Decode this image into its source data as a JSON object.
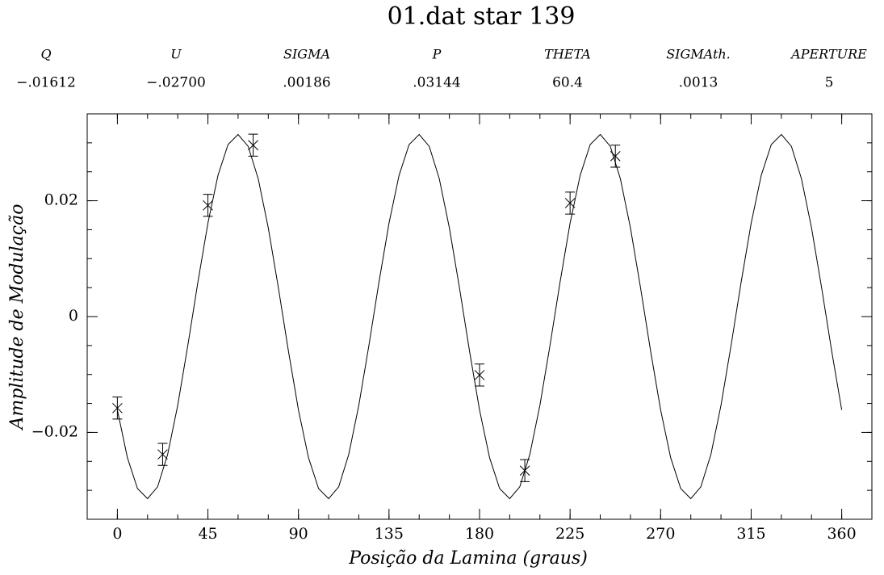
{
  "chart_data": {
    "type": "line",
    "title": "01.dat star 139",
    "header": {
      "labels": [
        "Q",
        "U",
        "SIGMA",
        "P",
        "THETA",
        "SIGMAth.",
        "APERTURE"
      ],
      "values": [
        "−.01612",
        "−.02700",
        ".00186",
        ".03144",
        "60.4",
        ".0013",
        "5"
      ]
    },
    "xlabel": "Posição da Lamina (graus)",
    "ylabel": "Amplitude de Modulação",
    "xlim": [
      -15,
      375
    ],
    "ylim": [
      -0.035,
      0.035
    ],
    "xticks": [
      0,
      45,
      90,
      135,
      180,
      225,
      270,
      315,
      360
    ],
    "yticks": [
      {
        "value": -0.02,
        "label": "−0.02"
      },
      0,
      0.02
    ],
    "minor_ticks": {
      "x": 15,
      "y": 0.005
    },
    "color": "#000000",
    "fit": {
      "x": [
        0,
        5,
        10,
        15,
        20,
        25,
        30,
        35,
        40,
        45,
        50,
        55,
        60,
        65,
        70,
        75,
        80,
        85,
        90,
        95,
        100,
        105,
        110,
        115,
        120,
        125,
        130,
        135,
        140,
        145,
        150,
        155,
        160,
        165,
        170,
        175,
        180,
        185,
        190,
        195,
        200,
        205,
        210,
        215,
        220,
        225,
        230,
        235,
        240,
        245,
        250,
        255,
        260,
        265,
        270,
        275,
        280,
        285,
        290,
        295,
        300,
        305,
        310,
        315,
        320,
        325,
        330,
        335,
        340,
        345,
        350,
        355,
        360
      ],
      "values": [
        -0.01612,
        -0.02438,
        -0.0297,
        -0.03144,
        -0.02939,
        -0.02379,
        -0.01532,
        -0.00501,
        0.00591,
        0.01612,
        0.02438,
        0.0297,
        0.03144,
        0.02939,
        0.02379,
        0.01532,
        0.00501,
        -0.00591,
        -0.01612,
        -0.02438,
        -0.0297,
        -0.03144,
        -0.02939,
        -0.02379,
        -0.01532,
        -0.00501,
        0.00591,
        0.01612,
        0.02438,
        0.0297,
        0.03144,
        0.02939,
        0.02379,
        0.01532,
        0.00501,
        -0.00591,
        -0.01612,
        -0.02438,
        -0.0297,
        -0.03144,
        -0.02939,
        -0.02379,
        -0.01532,
        -0.00501,
        0.00591,
        0.01612,
        0.02438,
        0.0297,
        0.03144,
        0.02939,
        0.02379,
        0.01532,
        0.00501,
        -0.00591,
        -0.01612,
        -0.02438,
        -0.0297,
        -0.03144,
        -0.02939,
        -0.02379,
        -0.01532,
        -0.00501,
        0.00591,
        0.01612,
        0.02438,
        0.0297,
        0.03144,
        0.02939,
        0.02379,
        0.01532,
        0.00501,
        -0.00591,
        -0.01612
      ]
    },
    "points": {
      "x": [
        0,
        22.5,
        45,
        67.5,
        180,
        202.5,
        225,
        247.5
      ],
      "values": [
        -0.0158,
        -0.0238,
        0.0192,
        0.0296,
        -0.0101,
        -0.0266,
        0.0196,
        0.0277
      ],
      "errors": [
        0.0019,
        0.0019,
        0.0019,
        0.0019,
        0.0019,
        0.0019,
        0.0019,
        0.0019
      ]
    }
  }
}
